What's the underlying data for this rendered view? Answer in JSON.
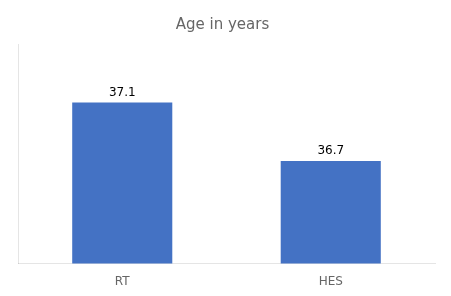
{
  "chart_data": {
    "type": "bar",
    "title": "Age in years",
    "categories": [
      "RT",
      "HES"
    ],
    "values": [
      37.1,
      36.7
    ],
    "color": "#4472C4",
    "ylim": [
      36.0,
      37.5
    ],
    "grid": false,
    "data_labels": true,
    "tick_labels": "x"
  }
}
